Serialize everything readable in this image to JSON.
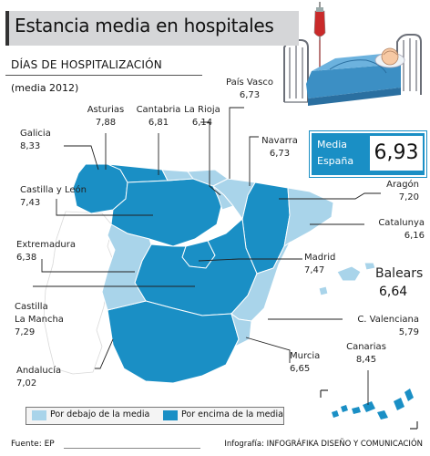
{
  "header": {
    "title": "Estancia media en hospitales",
    "subtitle": "DÍAS DE HOSPITALIZACIÓN",
    "year_note": "(media 2012)"
  },
  "national": {
    "label_line1": "Media",
    "label_line2": "España",
    "value": "6,93"
  },
  "regions": {
    "galicia": {
      "name": "Galicia",
      "value": "8,33",
      "category": "above"
    },
    "asturias": {
      "name": "Asturias",
      "value": "7,88",
      "category": "above"
    },
    "cantabria": {
      "name": "Cantabria",
      "value": "6,81",
      "category": "below"
    },
    "la_rioja": {
      "name": "La Rioja",
      "value": "6,14",
      "category": "below"
    },
    "pais_vasco": {
      "name": "País Vasco",
      "value": "6,73",
      "category": "below"
    },
    "navarra": {
      "name": "Navarra",
      "value": "6,73",
      "category": "below"
    },
    "aragon": {
      "name": "Aragón",
      "value": "7,20",
      "category": "above"
    },
    "catalunya": {
      "name": "Catalunya",
      "value": "6,16",
      "category": "below"
    },
    "castilla_leon": {
      "name": "Castilla y León",
      "value": "7,43",
      "category": "above"
    },
    "madrid": {
      "name": "Madrid",
      "value": "7,47",
      "category": "above"
    },
    "extremadura": {
      "name": "Extremadura",
      "value": "6,38",
      "category": "below"
    },
    "castilla_la_mancha": {
      "name_line1": "Castilla",
      "name_line2": "La Mancha",
      "value": "7,29",
      "category": "above"
    },
    "balears": {
      "name": "Balears",
      "value": "6,64",
      "category": "below"
    },
    "c_valenciana": {
      "name": "C. Valenciana",
      "value": "5,79",
      "category": "below"
    },
    "murcia": {
      "name": "Murcia",
      "value": "6,65",
      "category": "below"
    },
    "andalucia": {
      "name": "Andalucía",
      "value": "7,02",
      "category": "above"
    },
    "canarias": {
      "name": "Canarias",
      "value": "8,45",
      "category": "above"
    }
  },
  "legend": {
    "below_label": "Por debajo de la media",
    "above_label": "Por encima de la media"
  },
  "colors": {
    "above": "#1a8fc5",
    "below": "#a9d4ea",
    "portugal": "#ffffff",
    "border": "#ffffff"
  },
  "footer": {
    "source": "Fuente: EP",
    "credit": "Infografía: INFOGRÁFIKA DISEÑO Y COMUNICACIÓN"
  }
}
